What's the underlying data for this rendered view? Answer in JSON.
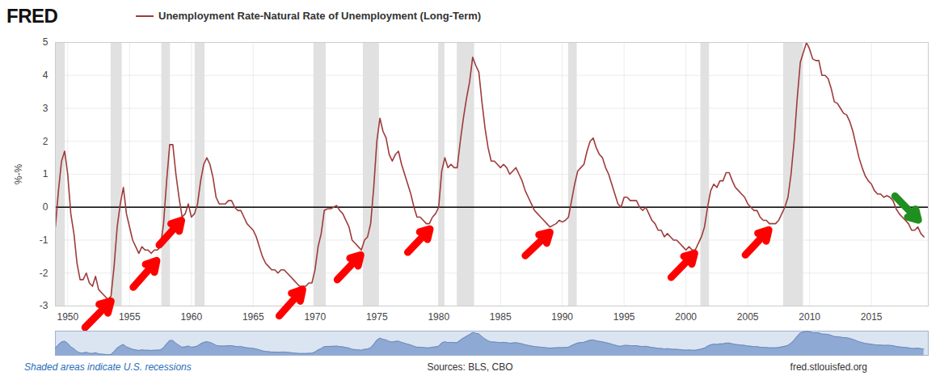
{
  "chart_data": {
    "type": "line",
    "logo": "FRED",
    "title": "Unemployment Rate-Natural Rate of Unemployment (Long-Term)",
    "ylabel": "%-%",
    "note": "Shaded areas indicate U.S. recessions",
    "source": "Sources: BLS, CBO",
    "url": "fred.stlouisfed.org",
    "xlim": [
      1949,
      2019.6
    ],
    "xticks": [
      1950,
      1955,
      1960,
      1965,
      1970,
      1975,
      1980,
      1985,
      1990,
      1995,
      2000,
      2005,
      2010,
      2015
    ],
    "ylim": [
      -3,
      5
    ],
    "yticks": [
      -3,
      -2,
      -1,
      0,
      1,
      2,
      3,
      4,
      5
    ],
    "grid": true,
    "hline": 0,
    "recessions": [
      [
        1948.9,
        1949.8
      ],
      [
        1953.5,
        1954.4
      ],
      [
        1957.6,
        1958.3
      ],
      [
        1960.3,
        1961.1
      ],
      [
        1969.9,
        1970.9
      ],
      [
        1973.9,
        1975.2
      ],
      [
        1980.0,
        1980.5
      ],
      [
        1981.5,
        1982.9
      ],
      [
        1990.5,
        1991.2
      ],
      [
        2001.2,
        2001.9
      ],
      [
        2007.9,
        2009.5
      ]
    ],
    "arrows": [
      {
        "from": [
          1951.4,
          -3.65
        ],
        "to": [
          1953.5,
          -2.85
        ],
        "color": "#ff0000"
      },
      {
        "from": [
          1955.3,
          -2.43
        ],
        "to": [
          1957.2,
          -1.62
        ],
        "color": "#ff0000"
      },
      {
        "from": [
          1957.4,
          -1.15
        ],
        "to": [
          1959.2,
          -0.4
        ],
        "color": "#ff0000"
      },
      {
        "from": [
          1967.1,
          -3.3
        ],
        "to": [
          1969.0,
          -2.5
        ],
        "color": "#ff0000"
      },
      {
        "from": [
          1971.8,
          -2.2
        ],
        "to": [
          1973.7,
          -1.45
        ],
        "color": "#ff0000"
      },
      {
        "from": [
          1977.5,
          -1.37
        ],
        "to": [
          1979.3,
          -0.66
        ],
        "color": "#ff0000"
      },
      {
        "from": [
          1987.0,
          -1.47
        ],
        "to": [
          1989.0,
          -0.76
        ],
        "color": "#ff0000"
      },
      {
        "from": [
          1998.8,
          -2.13
        ],
        "to": [
          2000.7,
          -1.4
        ],
        "color": "#ff0000"
      },
      {
        "from": [
          2004.8,
          -1.45
        ],
        "to": [
          2006.7,
          -0.69
        ],
        "color": "#ff0000"
      },
      {
        "from": [
          2016.9,
          0.34
        ],
        "to": [
          2018.8,
          -0.39
        ],
        "color": "#1f8f1f"
      }
    ],
    "x": [
      1949,
      1949.25,
      1949.5,
      1949.75,
      1950,
      1950.25,
      1950.5,
      1950.75,
      1951,
      1951.25,
      1951.5,
      1951.75,
      1952,
      1952.25,
      1952.5,
      1952.75,
      1953,
      1953.25,
      1953.5,
      1953.75,
      1954,
      1954.25,
      1954.5,
      1954.75,
      1955,
      1955.25,
      1955.5,
      1955.75,
      1956,
      1956.25,
      1956.5,
      1956.75,
      1957,
      1957.25,
      1957.5,
      1957.75,
      1958,
      1958.25,
      1958.5,
      1958.75,
      1959,
      1959.25,
      1959.5,
      1959.75,
      1960,
      1960.25,
      1960.5,
      1960.75,
      1961,
      1961.25,
      1961.5,
      1961.75,
      1962,
      1962.25,
      1962.5,
      1962.75,
      1963,
      1963.25,
      1963.5,
      1963.75,
      1964,
      1964.25,
      1964.5,
      1964.75,
      1965,
      1965.25,
      1965.5,
      1965.75,
      1966,
      1966.25,
      1966.5,
      1966.75,
      1967,
      1967.25,
      1967.5,
      1967.75,
      1968,
      1968.25,
      1968.5,
      1968.75,
      1969,
      1969.25,
      1969.5,
      1969.75,
      1970,
      1970.25,
      1970.5,
      1970.75,
      1971,
      1971.25,
      1971.5,
      1971.75,
      1972,
      1972.25,
      1972.5,
      1972.75,
      1973,
      1973.25,
      1973.5,
      1973.75,
      1974,
      1974.25,
      1974.5,
      1974.75,
      1975,
      1975.25,
      1975.5,
      1975.75,
      1976,
      1976.25,
      1976.5,
      1976.75,
      1977,
      1977.25,
      1977.5,
      1977.75,
      1978,
      1978.25,
      1978.5,
      1978.75,
      1979,
      1979.25,
      1979.5,
      1979.75,
      1980,
      1980.25,
      1980.5,
      1980.75,
      1981,
      1981.25,
      1981.5,
      1981.75,
      1982,
      1982.25,
      1982.5,
      1982.75,
      1983,
      1983.25,
      1983.5,
      1983.75,
      1984,
      1984.25,
      1984.5,
      1984.75,
      1985,
      1985.25,
      1985.5,
      1985.75,
      1986,
      1986.25,
      1986.5,
      1986.75,
      1987,
      1987.25,
      1987.5,
      1987.75,
      1988,
      1988.25,
      1988.5,
      1988.75,
      1989,
      1989.25,
      1989.5,
      1989.75,
      1990,
      1990.25,
      1990.5,
      1990.75,
      1991,
      1991.25,
      1991.5,
      1991.75,
      1992,
      1992.25,
      1992.5,
      1992.75,
      1993,
      1993.25,
      1993.5,
      1993.75,
      1994,
      1994.25,
      1994.5,
      1994.75,
      1995,
      1995.25,
      1995.5,
      1995.75,
      1996,
      1996.25,
      1996.5,
      1996.75,
      1997,
      1997.25,
      1997.5,
      1997.75,
      1998,
      1998.25,
      1998.5,
      1998.75,
      1999,
      1999.25,
      1999.5,
      1999.75,
      2000,
      2000.25,
      2000.5,
      2000.75,
      2001,
      2001.25,
      2001.5,
      2001.75,
      2002,
      2002.25,
      2002.5,
      2002.75,
      2003,
      2003.25,
      2003.5,
      2003.75,
      2004,
      2004.25,
      2004.5,
      2004.75,
      2005,
      2005.25,
      2005.5,
      2005.75,
      2006,
      2006.25,
      2006.5,
      2006.75,
      2007,
      2007.25,
      2007.5,
      2007.75,
      2008,
      2008.25,
      2008.5,
      2008.75,
      2009,
      2009.25,
      2009.5,
      2009.75,
      2010,
      2010.25,
      2010.5,
      2010.75,
      2011,
      2011.25,
      2011.5,
      2011.75,
      2012,
      2012.25,
      2012.5,
      2012.75,
      2013,
      2013.25,
      2013.5,
      2013.75,
      2014,
      2014.25,
      2014.5,
      2014.75,
      2015,
      2015.25,
      2015.5,
      2015.75,
      2016,
      2016.25,
      2016.5,
      2016.75,
      2017,
      2017.25,
      2017.5,
      2017.75,
      2018,
      2018.25,
      2018.5,
      2018.75,
      2019,
      2019.25
    ],
    "series": [
      {
        "name": "Unemployment Rate-Natural Rate of Unemployment (Long-Term)",
        "color": "#9e3b3b",
        "values": [
          -0.6,
          0.5,
          1.4,
          1.7,
          1.0,
          -0.2,
          -0.8,
          -1.7,
          -2.2,
          -2.2,
          -2.0,
          -2.3,
          -2.4,
          -2.1,
          -2.5,
          -2.6,
          -2.7,
          -2.8,
          -2.7,
          -1.8,
          -0.6,
          0.1,
          0.6,
          -0.2,
          -0.6,
          -1.0,
          -1.2,
          -1.4,
          -1.2,
          -1.3,
          -1.3,
          -1.4,
          -1.3,
          -1.3,
          -1.2,
          -0.5,
          0.8,
          1.9,
          1.9,
          1.0,
          0.3,
          -0.3,
          -0.2,
          0.1,
          -0.3,
          -0.2,
          0.1,
          0.8,
          1.3,
          1.5,
          1.3,
          0.9,
          0.3,
          0.1,
          0.1,
          0.1,
          0.2,
          0.2,
          0.0,
          -0.1,
          -0.1,
          -0.3,
          -0.5,
          -0.6,
          -0.7,
          -0.9,
          -1.2,
          -1.5,
          -1.7,
          -1.8,
          -1.9,
          -1.9,
          -2.0,
          -1.9,
          -1.9,
          -2.0,
          -2.1,
          -2.2,
          -2.3,
          -2.4,
          -2.4,
          -2.4,
          -2.3,
          -2.3,
          -1.9,
          -1.2,
          -0.8,
          -0.1,
          -0.05,
          -0.05,
          0.0,
          0.05,
          -0.1,
          -0.2,
          -0.4,
          -0.6,
          -1.0,
          -1.1,
          -1.2,
          -1.3,
          -1.0,
          -0.9,
          -0.5,
          0.6,
          2.0,
          2.7,
          2.3,
          2.1,
          1.6,
          1.4,
          1.6,
          1.7,
          1.3,
          1.0,
          0.7,
          0.4,
          0.0,
          -0.3,
          -0.3,
          -0.4,
          -0.5,
          -0.5,
          -0.3,
          -0.2,
          0.0,
          1.1,
          1.5,
          1.2,
          1.3,
          1.2,
          1.2,
          2.0,
          2.7,
          3.3,
          3.8,
          4.55,
          4.3,
          4.1,
          3.2,
          2.4,
          1.8,
          1.4,
          1.4,
          1.3,
          1.2,
          1.3,
          1.2,
          1.0,
          1.1,
          1.2,
          1.0,
          0.8,
          0.5,
          0.3,
          0.1,
          -0.1,
          -0.2,
          -0.3,
          -0.4,
          -0.5,
          -0.6,
          -0.55,
          -0.5,
          -0.4,
          -0.45,
          -0.4,
          -0.3,
          0.2,
          0.7,
          1.1,
          1.2,
          1.3,
          1.7,
          2.0,
          2.1,
          1.8,
          1.6,
          1.5,
          1.2,
          1.0,
          0.7,
          0.4,
          0.1,
          0.0,
          0.3,
          0.3,
          0.2,
          0.2,
          0.2,
          0.0,
          -0.1,
          0.0,
          -0.2,
          -0.4,
          -0.5,
          -0.7,
          -0.7,
          -0.9,
          -0.8,
          -0.9,
          -1.0,
          -1.0,
          -1.1,
          -1.2,
          -1.3,
          -1.2,
          -1.3,
          -1.3,
          -1.1,
          -0.9,
          -0.6,
          0.0,
          0.5,
          0.7,
          0.6,
          0.8,
          0.8,
          1.05,
          1.05,
          0.8,
          0.6,
          0.5,
          0.4,
          0.3,
          0.1,
          0.0,
          -0.1,
          -0.1,
          -0.3,
          -0.4,
          -0.4,
          -0.5,
          -0.5,
          -0.5,
          -0.4,
          -0.2,
          0.0,
          0.3,
          1.0,
          2.0,
          3.3,
          4.4,
          4.7,
          5.0,
          4.8,
          4.5,
          4.45,
          4.45,
          4.0,
          4.0,
          3.9,
          3.6,
          3.2,
          3.15,
          3.0,
          2.85,
          2.8,
          2.6,
          2.3,
          1.9,
          1.5,
          1.2,
          0.95,
          0.8,
          0.7,
          0.5,
          0.4,
          0.4,
          0.3,
          0.35,
          0.3,
          0.2,
          -0.05,
          -0.2,
          -0.3,
          -0.4,
          -0.5,
          -0.7,
          -0.7,
          -0.6,
          -0.8,
          -0.9
        ]
      }
    ]
  }
}
